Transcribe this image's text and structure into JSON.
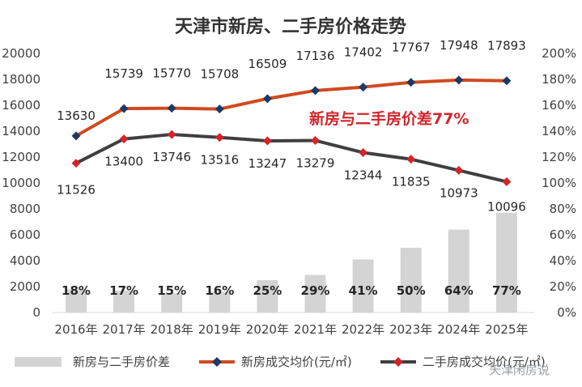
{
  "chart_data": {
    "type": "bar+line",
    "title": "天津市新房、二手房价格走势",
    "categories": [
      "2016年",
      "2017年",
      "2018年",
      "2019年",
      "2020年",
      "2021年",
      "2022年",
      "2023年",
      "2024年",
      "2025年"
    ],
    "series": [
      {
        "name": "新房与二手房价差",
        "kind": "bar",
        "axis": "right",
        "values": [
          18,
          17,
          15,
          16,
          25,
          29,
          41,
          50,
          64,
          77
        ],
        "labels": [
          "18%",
          "17%",
          "15%",
          "16%",
          "25%",
          "29%",
          "41%",
          "50%",
          "64%",
          "77%"
        ],
        "color": "#d4d4d4"
      },
      {
        "name": "新房成交均价(元/㎡)",
        "kind": "line",
        "axis": "left",
        "values": [
          13630,
          15739,
          15770,
          15708,
          16509,
          17136,
          17402,
          17767,
          17948,
          17893
        ],
        "color": "#d04a1f",
        "marker_color": "#1f3864"
      },
      {
        "name": "二手房成交均价(元/㎡)",
        "kind": "line",
        "axis": "left",
        "values": [
          11526,
          13400,
          13746,
          13516,
          13247,
          13279,
          12344,
          11835,
          10973,
          10096
        ],
        "color": "#3f3f3f",
        "marker_color": "#d2252a"
      }
    ],
    "left_axis": {
      "min": 0,
      "max": 20000,
      "ticks": [
        0,
        2000,
        4000,
        6000,
        8000,
        10000,
        12000,
        14000,
        16000,
        18000,
        20000
      ]
    },
    "right_axis": {
      "min": 0,
      "max": 200,
      "ticks": [
        "0%",
        "20%",
        "40%",
        "60%",
        "80%",
        "100%",
        "120%",
        "140%",
        "160%",
        "180%",
        "200%"
      ]
    },
    "annotation": "新房与二手房价差77%",
    "legend_position": "bottom",
    "grid": false
  },
  "watermark": "天津闲房说"
}
